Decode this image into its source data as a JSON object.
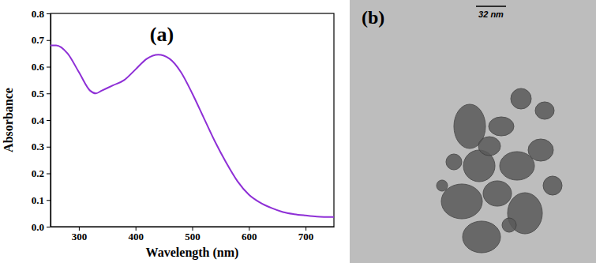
{
  "chart_data": {
    "type": "line",
    "title": "(a)",
    "x_label": "Wavelength (nm)",
    "y_label": "Absorbance",
    "x": [
      250,
      260,
      280,
      300,
      320,
      330,
      340,
      360,
      380,
      400,
      420,
      440,
      460,
      480,
      500,
      520,
      540,
      560,
      580,
      600,
      620,
      640,
      660,
      680,
      700,
      720,
      750
    ],
    "values": [
      0.68,
      0.68,
      0.65,
      0.58,
      0.51,
      0.5,
      0.51,
      0.53,
      0.55,
      0.59,
      0.63,
      0.645,
      0.63,
      0.58,
      0.5,
      0.41,
      0.32,
      0.24,
      0.17,
      0.12,
      0.09,
      0.07,
      0.055,
      0.047,
      0.042,
      0.038,
      0.036
    ],
    "color": "#8e2fd6",
    "xlim": [
      250,
      750
    ],
    "xticks": [
      300,
      400,
      500,
      600,
      700
    ],
    "ylim": [
      0,
      0.8
    ],
    "yticks": [
      {
        "value": 0,
        "label": "0.0"
      },
      0.1,
      0.2,
      0.3,
      0.4,
      0.5,
      0.6,
      0.7,
      0.8
    ],
    "grid": false
  },
  "panel_b": {
    "label": "(b)",
    "scale_bar": "32 nm"
  }
}
